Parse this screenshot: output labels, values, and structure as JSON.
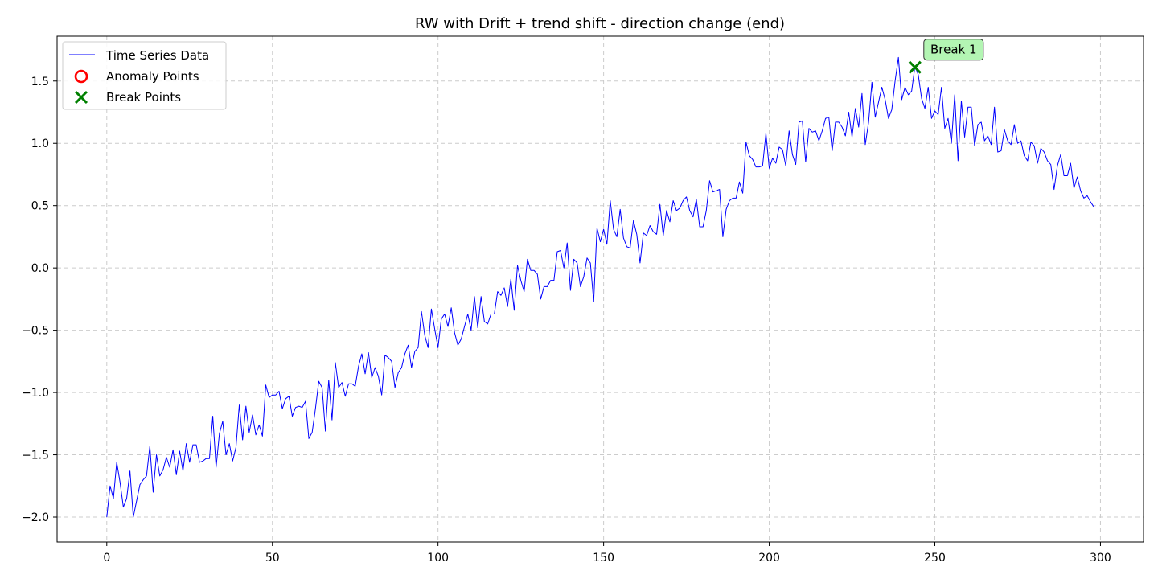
{
  "chart_data": {
    "type": "line",
    "title": "RW with Drift + trend shift - direction change (end)",
    "xlabel": "",
    "ylabel": "",
    "xlim": [
      -15,
      313
    ],
    "ylim": [
      -2.2,
      1.86
    ],
    "xticks": [
      0,
      50,
      100,
      150,
      200,
      250,
      300
    ],
    "xtick_labels": [
      "0",
      "50",
      "100",
      "150",
      "200",
      "250",
      "300"
    ],
    "yticks": [
      -2.0,
      -1.5,
      -1.0,
      -0.5,
      0.0,
      0.5,
      1.0,
      1.5
    ],
    "ytick_labels": [
      "−2.0",
      "−1.5",
      "−1.0",
      "−0.5",
      "0.0",
      "0.5",
      "1.0",
      "1.5"
    ],
    "grid": true,
    "legend": {
      "placement": "top-left",
      "entries": [
        {
          "label": "Time Series Data",
          "marker": "line",
          "color": "#0000ff"
        },
        {
          "label": "Anomaly Points",
          "marker": "circle",
          "color": "#ff0000"
        },
        {
          "label": "Break Points",
          "marker": "x",
          "color": "#008000"
        }
      ]
    },
    "series": [
      {
        "name": "Time Series Data",
        "color": "#0000ff",
        "x_start": 0,
        "x_step": 1,
        "values": [
          -2.0,
          -1.75,
          -1.85,
          -1.56,
          -1.72,
          -1.92,
          -1.85,
          -1.63,
          -2.0,
          -1.87,
          -1.74,
          -1.7,
          -1.67,
          -1.43,
          -1.8,
          -1.5,
          -1.67,
          -1.62,
          -1.52,
          -1.6,
          -1.46,
          -1.66,
          -1.47,
          -1.63,
          -1.41,
          -1.56,
          -1.42,
          -1.42,
          -1.56,
          -1.55,
          -1.53,
          -1.53,
          -1.19,
          -1.6,
          -1.33,
          -1.23,
          -1.5,
          -1.41,
          -1.55,
          -1.44,
          -1.1,
          -1.38,
          -1.11,
          -1.32,
          -1.18,
          -1.34,
          -1.26,
          -1.35,
          -0.94,
          -1.04,
          -1.02,
          -1.02,
          -0.99,
          -1.13,
          -1.05,
          -1.03,
          -1.19,
          -1.12,
          -1.11,
          -1.12,
          -1.07,
          -1.37,
          -1.32,
          -1.13,
          -0.91,
          -0.96,
          -1.31,
          -0.9,
          -1.22,
          -0.76,
          -0.96,
          -0.92,
          -1.03,
          -0.93,
          -0.93,
          -0.95,
          -0.79,
          -0.69,
          -0.85,
          -0.68,
          -0.88,
          -0.8,
          -0.87,
          -1.02,
          -0.7,
          -0.72,
          -0.75,
          -0.96,
          -0.84,
          -0.8,
          -0.69,
          -0.62,
          -0.8,
          -0.67,
          -0.64,
          -0.35,
          -0.54,
          -0.64,
          -0.33,
          -0.49,
          -0.64,
          -0.41,
          -0.37,
          -0.47,
          -0.32,
          -0.52,
          -0.62,
          -0.57,
          -0.47,
          -0.37,
          -0.5,
          -0.23,
          -0.48,
          -0.23,
          -0.43,
          -0.45,
          -0.37,
          -0.37,
          -0.19,
          -0.22,
          -0.16,
          -0.31,
          -0.09,
          -0.34,
          0.02,
          -0.1,
          -0.19,
          0.07,
          -0.02,
          -0.02,
          -0.05,
          -0.25,
          -0.15,
          -0.15,
          -0.1,
          -0.1,
          0.13,
          0.14,
          0.0,
          0.2,
          -0.18,
          0.07,
          0.04,
          -0.15,
          -0.07,
          0.08,
          0.04,
          -0.27,
          0.32,
          0.21,
          0.31,
          0.19,
          0.54,
          0.31,
          0.25,
          0.47,
          0.24,
          0.17,
          0.16,
          0.38,
          0.27,
          0.04,
          0.28,
          0.26,
          0.34,
          0.29,
          0.27,
          0.51,
          0.26,
          0.46,
          0.37,
          0.54,
          0.46,
          0.48,
          0.54,
          0.57,
          0.46,
          0.41,
          0.55,
          0.33,
          0.33,
          0.46,
          0.7,
          0.61,
          0.62,
          0.63,
          0.25,
          0.47,
          0.54,
          0.56,
          0.56,
          0.69,
          0.6,
          1.01,
          0.9,
          0.87,
          0.81,
          0.81,
          0.82,
          1.08,
          0.8,
          0.88,
          0.84,
          0.97,
          0.95,
          0.82,
          1.1,
          0.91,
          0.83,
          1.17,
          1.18,
          0.85,
          1.12,
          1.09,
          1.1,
          1.02,
          1.1,
          1.2,
          1.21,
          0.94,
          1.17,
          1.17,
          1.13,
          1.06,
          1.25,
          1.05,
          1.28,
          1.13,
          1.4,
          0.99,
          1.17,
          1.49,
          1.21,
          1.33,
          1.45,
          1.35,
          1.2,
          1.27,
          1.5,
          1.69,
          1.35,
          1.45,
          1.39,
          1.42,
          1.62,
          1.55,
          1.36,
          1.28,
          1.45,
          1.2,
          1.26,
          1.23,
          1.45,
          1.12,
          1.2,
          1.0,
          1.39,
          0.86,
          1.34,
          1.05,
          1.29,
          1.29,
          0.98,
          1.15,
          1.17,
          1.02,
          1.06,
          0.99,
          1.29,
          0.93,
          0.94,
          1.11,
          1.02,
          0.99,
          1.15,
          1.0,
          1.02,
          0.9,
          0.86,
          1.01,
          0.98,
          0.84,
          0.96,
          0.93,
          0.86,
          0.83,
          0.63,
          0.82,
          0.91,
          0.74,
          0.74,
          0.84,
          0.64,
          0.73,
          0.62,
          0.56,
          0.58,
          0.53,
          0.49
        ]
      }
    ],
    "break_points": [
      {
        "x": 244,
        "y": 1.61,
        "label": "Break 1",
        "color": "#008000"
      }
    ],
    "anomaly_points": [],
    "colors": {
      "line": "#0000ff",
      "break_marker": "#008000",
      "anomaly_marker": "#ff0000",
      "annotation_fill": "#b3f5b3",
      "grid": "#cccccc"
    }
  }
}
